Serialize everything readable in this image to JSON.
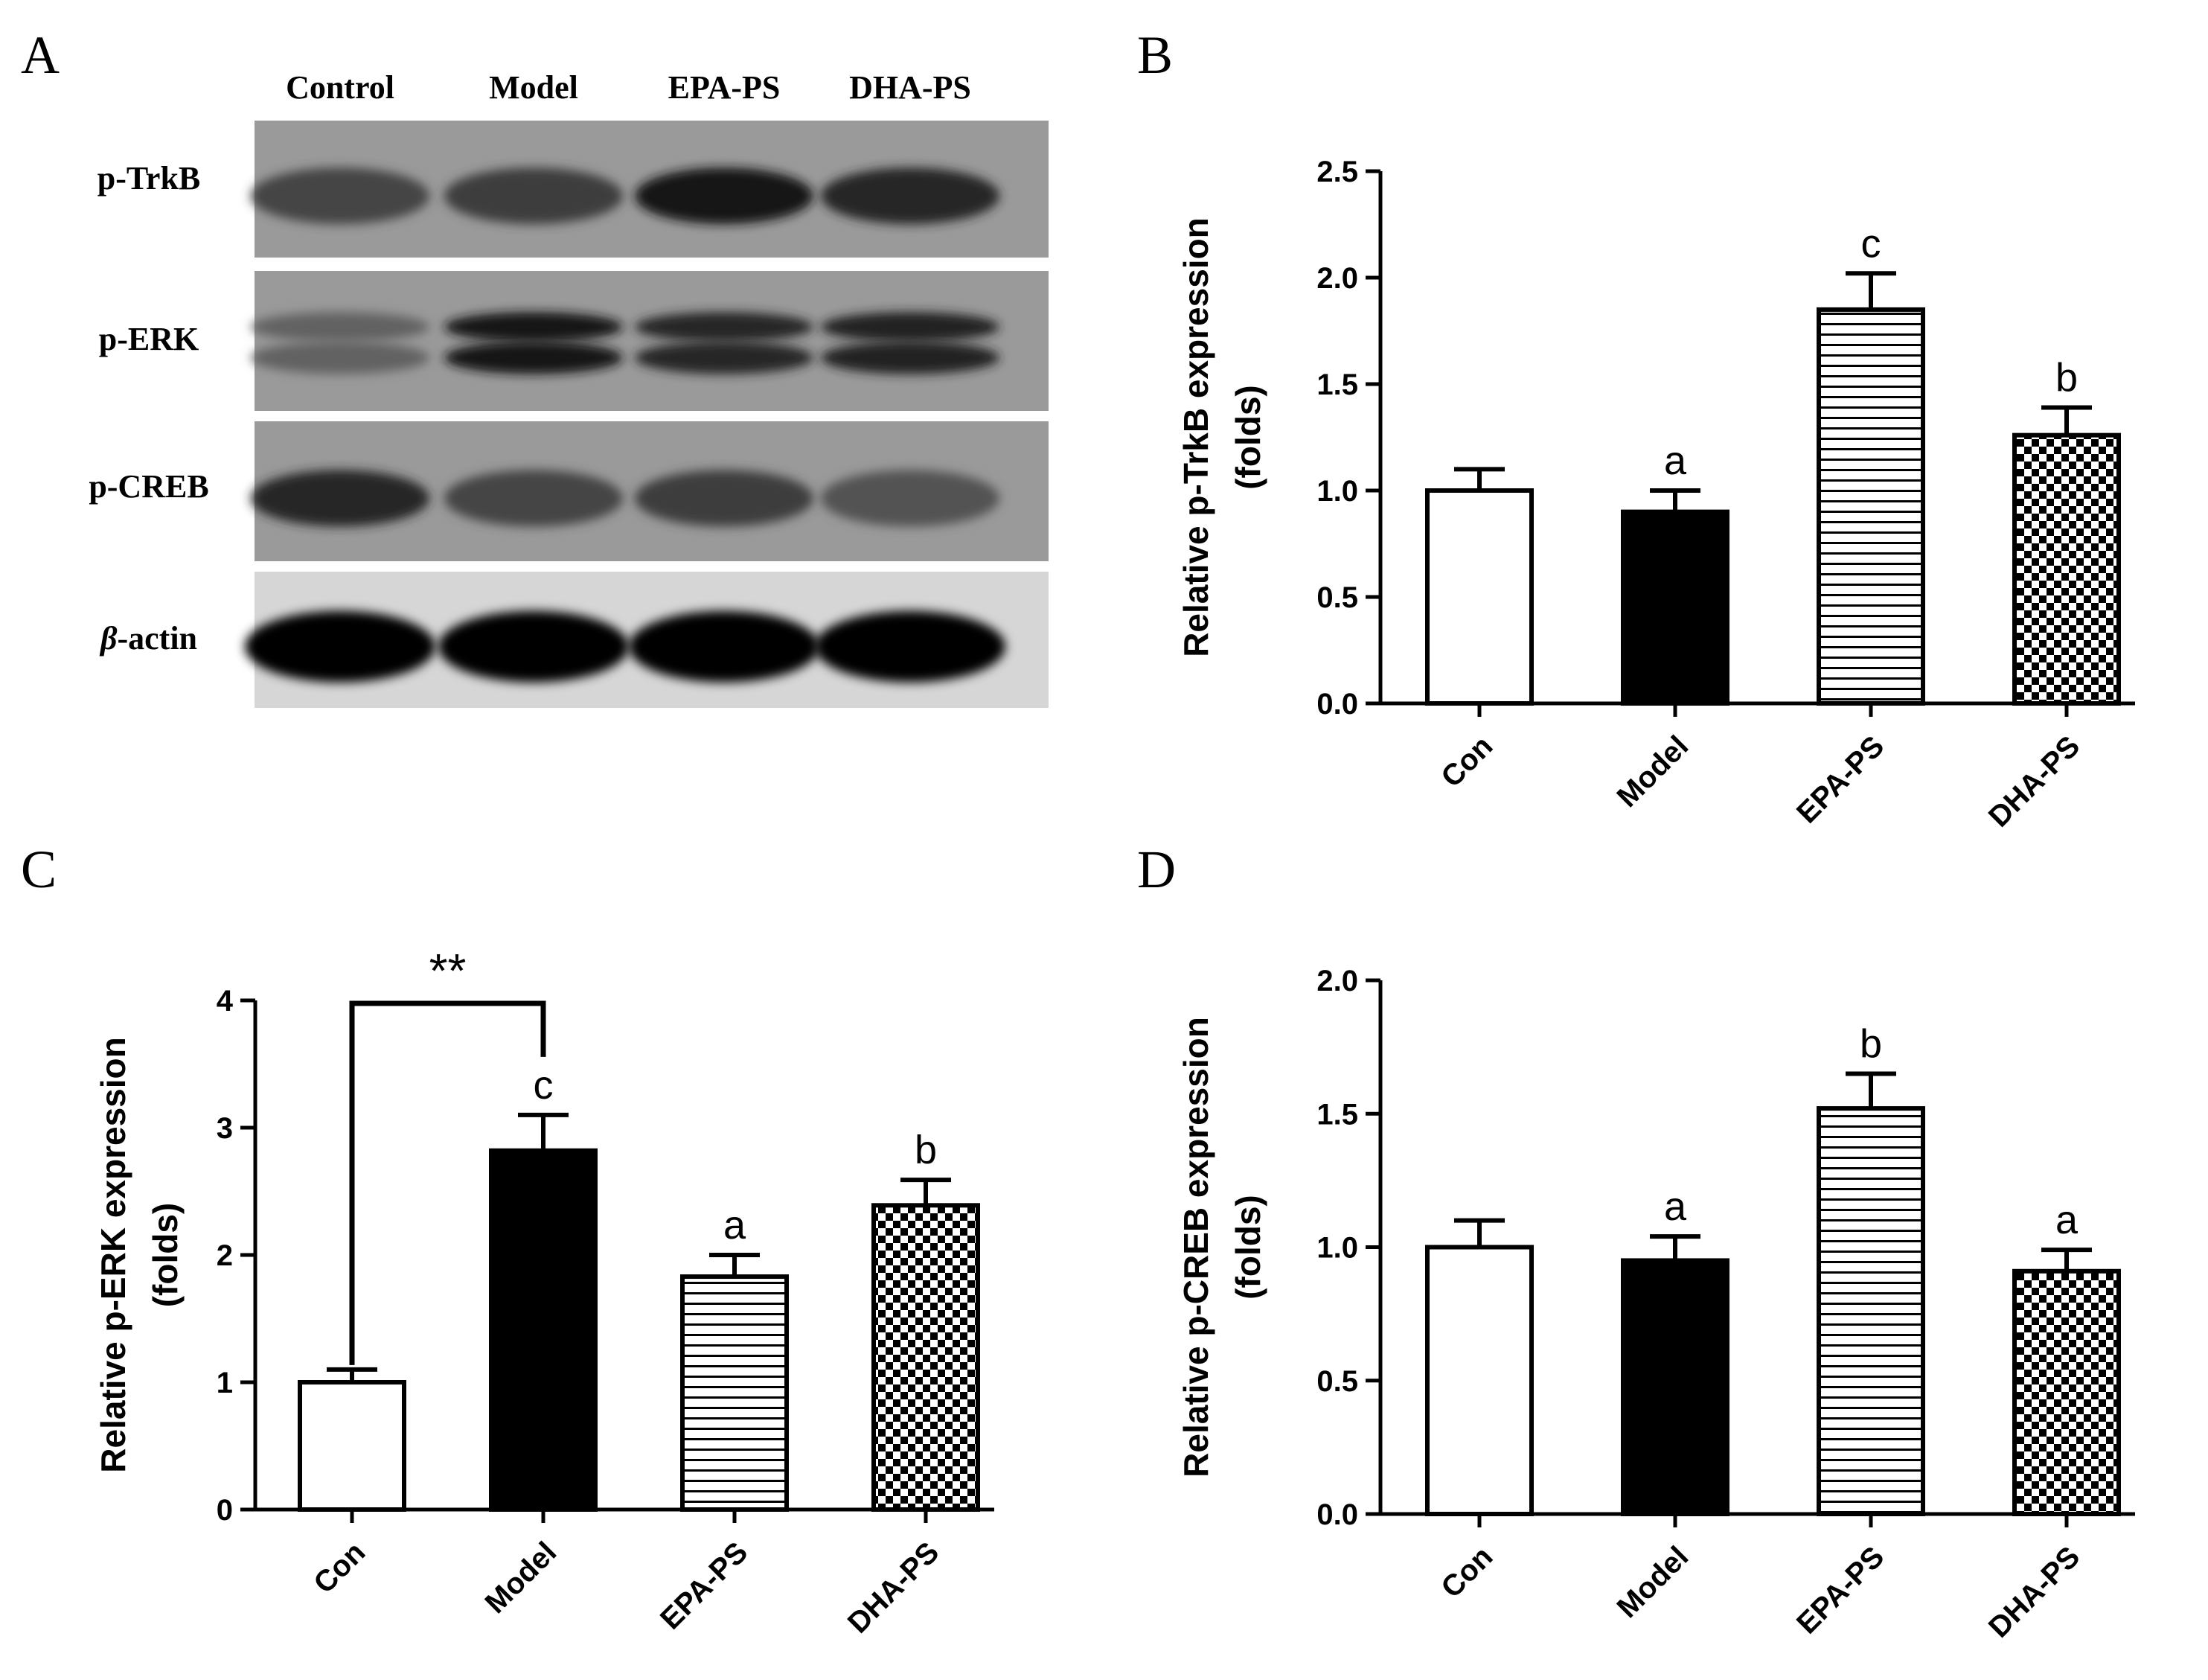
{
  "panels": {
    "a": "A",
    "b": "B",
    "c": "C",
    "d": "D"
  },
  "blot": {
    "lanes": [
      "Control",
      "Model",
      "EPA-PS",
      "DHA-PS"
    ],
    "rows": [
      {
        "label": "p-TrkB",
        "intensity": [
          0.55,
          0.6,
          0.85,
          0.75
        ]
      },
      {
        "label": "p-ERK",
        "intensity": [
          0.35,
          0.85,
          0.75,
          0.78
        ]
      },
      {
        "label": "p-CREB",
        "intensity": [
          0.75,
          0.55,
          0.6,
          0.45
        ]
      },
      {
        "label_prefix": "β",
        "label_suffix": "-actin",
        "intensity": [
          1.0,
          1.0,
          1.0,
          1.0
        ]
      }
    ]
  },
  "chart_data": [
    {
      "id": "B",
      "type": "bar",
      "categories": [
        "Con",
        "Model",
        "EPA-PS",
        "DHA-PS"
      ],
      "values": [
        1.0,
        0.9,
        1.85,
        1.26
      ],
      "errors": [
        0.1,
        0.1,
        0.17,
        0.13
      ],
      "sig": [
        "",
        "a",
        "c",
        "b"
      ],
      "patterns": [
        "white",
        "black",
        "hstripe",
        "checker"
      ],
      "ylabel_line1": "Relative p-TrkB expression",
      "ylabel_line2": "(folds)",
      "ylim": [
        0,
        2.5
      ],
      "yticks": [
        "0.0",
        "0.5",
        "1.0",
        "1.5",
        "2.0",
        "2.5"
      ]
    },
    {
      "id": "C",
      "type": "bar",
      "categories": [
        "Con",
        "Model",
        "EPA-PS",
        "DHA-PS"
      ],
      "values": [
        1.0,
        2.82,
        1.83,
        2.39
      ],
      "errors": [
        0.1,
        0.28,
        0.17,
        0.2
      ],
      "sig": [
        "",
        "c",
        "a",
        "b"
      ],
      "patterns": [
        "white",
        "black",
        "hstripe",
        "checker"
      ],
      "ylabel_line1": "Relative p-ERK expression",
      "ylabel_line2": "(folds)",
      "ylim": [
        0,
        4
      ],
      "yticks": [
        "0",
        "1",
        "2",
        "3",
        "4"
      ],
      "bracket": {
        "from": 0,
        "to": 1,
        "level": 4.0,
        "label": "**"
      }
    },
    {
      "id": "D",
      "type": "bar",
      "categories": [
        "Con",
        "Model",
        "EPA-PS",
        "DHA-PS"
      ],
      "values": [
        1.0,
        0.95,
        1.52,
        0.91
      ],
      "errors": [
        0.1,
        0.09,
        0.13,
        0.08
      ],
      "sig": [
        "",
        "a",
        "b",
        "a"
      ],
      "patterns": [
        "white",
        "black",
        "hstripe",
        "checker"
      ],
      "ylabel_line1": "Relative p-CREB expression",
      "ylabel_line2": "(folds)",
      "ylim": [
        0,
        2.0
      ],
      "yticks": [
        "0.0",
        "0.5",
        "1.0",
        "1.5",
        "2.0"
      ]
    }
  ]
}
